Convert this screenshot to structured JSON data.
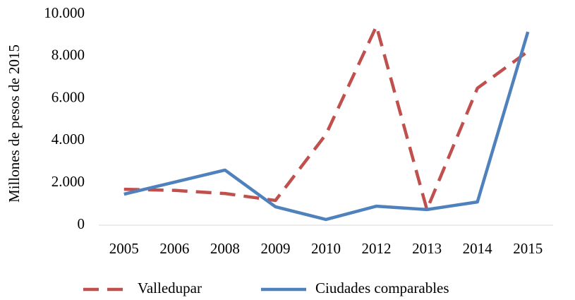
{
  "chart_data": {
    "type": "line",
    "y_label": "Millones de pesos de 2015",
    "categories": [
      "2005",
      "2006",
      "2008",
      "2009",
      "2010",
      "2012",
      "2013",
      "2014",
      "2015"
    ],
    "series": [
      {
        "name": "Valledupar",
        "color": "#c0504d",
        "dash": true,
        "values": [
          1700,
          1650,
          1500,
          1170,
          4300,
          9430,
          740,
          6490,
          8230
        ]
      },
      {
        "name": "Ciudades comparables",
        "color": "#4f81bd",
        "dash": false,
        "values": [
          1470,
          2040,
          2610,
          870,
          270,
          900,
          740,
          1100,
          9160
        ]
      }
    ],
    "ylim": [
      0,
      10000
    ],
    "yticks": [
      0,
      {
        "value": 2000,
        "label": "2.000"
      },
      {
        "value": 4000,
        "label": "4.000"
      },
      {
        "value": 6000,
        "label": "6.000"
      },
      {
        "value": 8000,
        "label": "8.000"
      },
      {
        "value": 10000,
        "label": "10.000"
      }
    ],
    "grid": false,
    "legend": "bottom"
  }
}
